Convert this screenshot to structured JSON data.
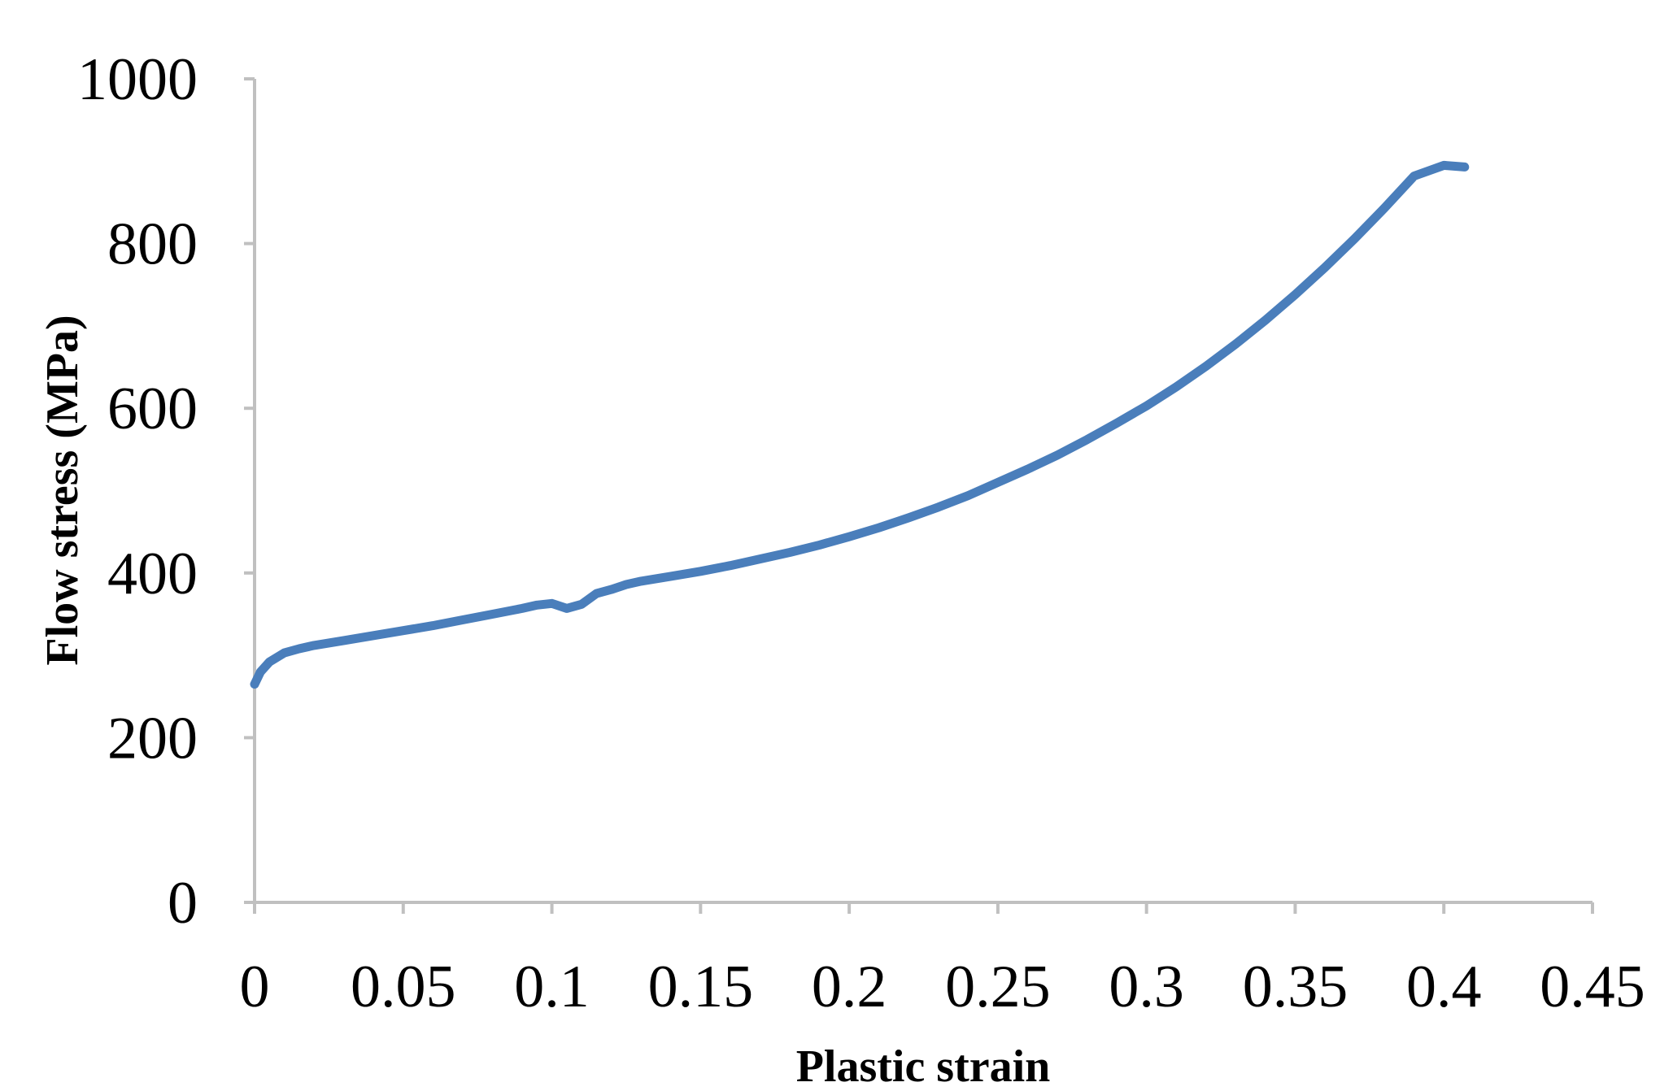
{
  "chart_data": {
    "type": "line",
    "title": "",
    "xlabel": "Plastic strain",
    "ylabel": "Flow stress (MPa)",
    "xlim": [
      0,
      0.45
    ],
    "ylim": [
      0,
      1000
    ],
    "x_ticks": [
      "0",
      "0.05",
      "0.1",
      "0.15",
      "0.2",
      "0.25",
      "0.3",
      "0.35",
      "0.4",
      "0.45"
    ],
    "y_ticks": [
      "0",
      "200",
      "400",
      "600",
      "800",
      "1000"
    ],
    "grid": false,
    "legend": "none",
    "colors": {
      "series": "#4a7ebb",
      "axis": "#c0c0c0"
    },
    "series": [
      {
        "x": [
          0,
          0.002,
          0.005,
          0.01,
          0.015,
          0.02,
          0.03,
          0.04,
          0.05,
          0.06,
          0.07,
          0.08,
          0.09,
          0.095,
          0.1,
          0.105,
          0.11,
          0.115,
          0.12,
          0.125,
          0.13,
          0.14,
          0.15,
          0.16,
          0.17,
          0.18,
          0.19,
          0.2,
          0.21,
          0.22,
          0.23,
          0.24,
          0.25,
          0.26,
          0.27,
          0.28,
          0.29,
          0.3,
          0.31,
          0.32,
          0.33,
          0.34,
          0.35,
          0.36,
          0.37,
          0.38,
          0.39,
          0.4,
          0.407
        ],
        "y": [
          265,
          280,
          292,
          303,
          308,
          312,
          318,
          324,
          330,
          336,
          343,
          350,
          357,
          361,
          363,
          357,
          362,
          375,
          380,
          386,
          390,
          396,
          402,
          409,
          417,
          425,
          434,
          444,
          455,
          467,
          480,
          494,
          510,
          526,
          543,
          562,
          582,
          603,
          626,
          651,
          678,
          707,
          738,
          771,
          806,
          843,
          882,
          895,
          893
        ]
      }
    ]
  }
}
